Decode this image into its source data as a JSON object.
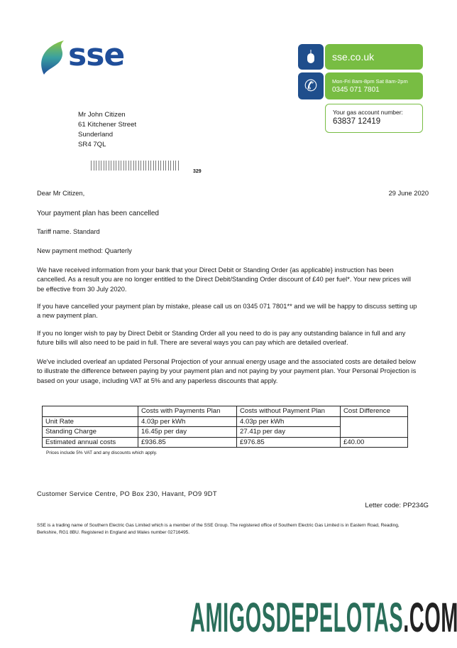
{
  "logo": {
    "text": "sse"
  },
  "contact": {
    "website": "sse.co.uk",
    "hours": "Mon-Fri 8am-8pm Sat 8am-2pm",
    "phone": "0345 071 7801",
    "account_label": "Your gas account number:",
    "account_number": "63837 12419"
  },
  "address": [
    "Mr John Citizen",
    "61 Kitchener Street",
    "Sunderland",
    "SR4 7QL"
  ],
  "barcode_number": "329",
  "salutation": "Dear Mr Citizen,",
  "date": "29 June 2020",
  "subject": "Your payment plan has been cancelled",
  "tariff": "Tariff name. Standard",
  "payment_method": "New payment method: Quarterly",
  "paragraphs": [
    "We have received information from your bank that your Direct Debit or Standing Order {as applicable} instruction has been cancelled. As a result you are no longer entitled to the Direct Debit/Standing Order discount of £40 per fuel*. Your new prices will be effective from 30 July 2020.",
    "If you have cancelled your payment plan by mistake, please call us on 0345 071 7801** and we will be happy to discuss setting up a new payment plan.",
    "If you no longer wish to pay by Direct Debit or Standing Order all you need to do is pay any outstanding balance in full and any future bills will also need to be paid in full. There are several ways you can pay which are detailed overleaf.",
    "We've included overleaf an updated Personal Projection of your annual energy usage and the associated costs are detailed below to illustrate the difference between paying by your payment plan and not paying by your payment plan. Your Personal Projection is based on your usage, including VAT at 5% and any paperless discounts that apply."
  ],
  "table": {
    "headers": [
      "",
      "Costs with Payments Plan",
      "Costs without Payment Plan",
      "Cost Difference"
    ],
    "rows": [
      [
        "Unit Rate",
        "4.03p per kWh",
        "4.03p per kWh"
      ],
      [
        "Standing Charge",
        "16.45p per day",
        "27.41p per day"
      ],
      [
        "Estimated annual costs",
        "£936.85",
        "£976.85",
        "£40.00"
      ]
    ],
    "note": "Prices include 5% VAT and any discounts which apply."
  },
  "customer_service": "Customer Service Centre, PO Box 230, Havant, PO9 9DT",
  "letter_code": "Letter code: PP234G",
  "footer": "SSE is a trading name of Southern Electric Gas Limited which is a member of the SSE Group. The registered office of Southern Electric Gas Limited is in Eastern Road, Reading, Berkshire, RG1 8BU. Registered in England and Wales number 02716495.",
  "watermark": {
    "main": "AMIGOSDEPELOTAS",
    "suffix": ".COM"
  },
  "colors": {
    "green": "#78bd43",
    "blue": "#1f4e8c",
    "watermark": "#2a6e5a"
  }
}
